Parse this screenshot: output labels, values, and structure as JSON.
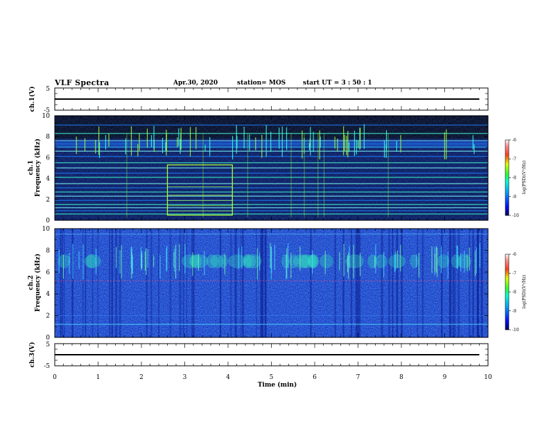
{
  "header": {
    "title": "VLF Spectra",
    "date": "Apr.30, 2020",
    "station": "station= MOS",
    "start": "start UT =   3 : 50 : 1"
  },
  "chart_data": [
    {
      "type": "line",
      "panel": "ch1-waveform",
      "ylabel": "ch.1(V)",
      "ylim": [
        -5,
        5
      ],
      "yticks": [
        "5",
        "-5"
      ],
      "xlim": [
        0,
        10
      ],
      "series": [
        {
          "x": [
            0,
            9.8
          ],
          "y": [
            0,
            0
          ]
        }
      ]
    },
    {
      "type": "heatmap",
      "panel": "ch1-spectrogram",
      "ylabel_line1": "ch.1",
      "ylabel_line2": "Frequency (kHz)",
      "ylim": [
        0,
        10
      ],
      "yticks": [
        "0",
        "2",
        "4",
        "6",
        "8",
        "10"
      ],
      "xlim": [
        0,
        10
      ],
      "colorbar": {
        "label": "log(PSD)(V²/Hz)",
        "range": [
          -10,
          -6
        ],
        "ticks": [
          "-6",
          "-7",
          "-8",
          "-9",
          "-10"
        ]
      },
      "highlight_box_min": [
        2.6,
        4.1
      ],
      "highlight_box_khz": [
        0.5,
        5.3
      ]
    },
    {
      "type": "heatmap",
      "panel": "ch2-spectrogram",
      "ylabel_line1": "ch.2",
      "ylabel_line2": "Frequency (kHz)",
      "ylim": [
        0,
        10
      ],
      "yticks": [
        "0",
        "2",
        "4",
        "6",
        "8",
        "10"
      ],
      "xlim": [
        0,
        10
      ],
      "colorbar": {
        "label": "log(PSD)(V²/Hz)",
        "range": [
          -10,
          -6
        ],
        "ticks": [
          "-6",
          "-7",
          "-8",
          "-9",
          "-10"
        ]
      }
    },
    {
      "type": "line",
      "panel": "ch3-waveform",
      "ylabel": "ch.3(V)",
      "ylim": [
        -5,
        5
      ],
      "yticks": [
        "5",
        "-5"
      ],
      "xlim": [
        0,
        10
      ],
      "xlabel": "Time (min)",
      "xticks": [
        "0",
        "1",
        "2",
        "3",
        "4",
        "5",
        "6",
        "7",
        "8",
        "9",
        "10"
      ],
      "series": [
        {
          "x": [
            0,
            9.8
          ],
          "y": [
            0,
            0
          ]
        }
      ]
    }
  ],
  "colors": {
    "background": "#ffffff",
    "axis": "#000000",
    "spec1_bg": "#050518",
    "spec2_bg": "#1a3cc8"
  }
}
